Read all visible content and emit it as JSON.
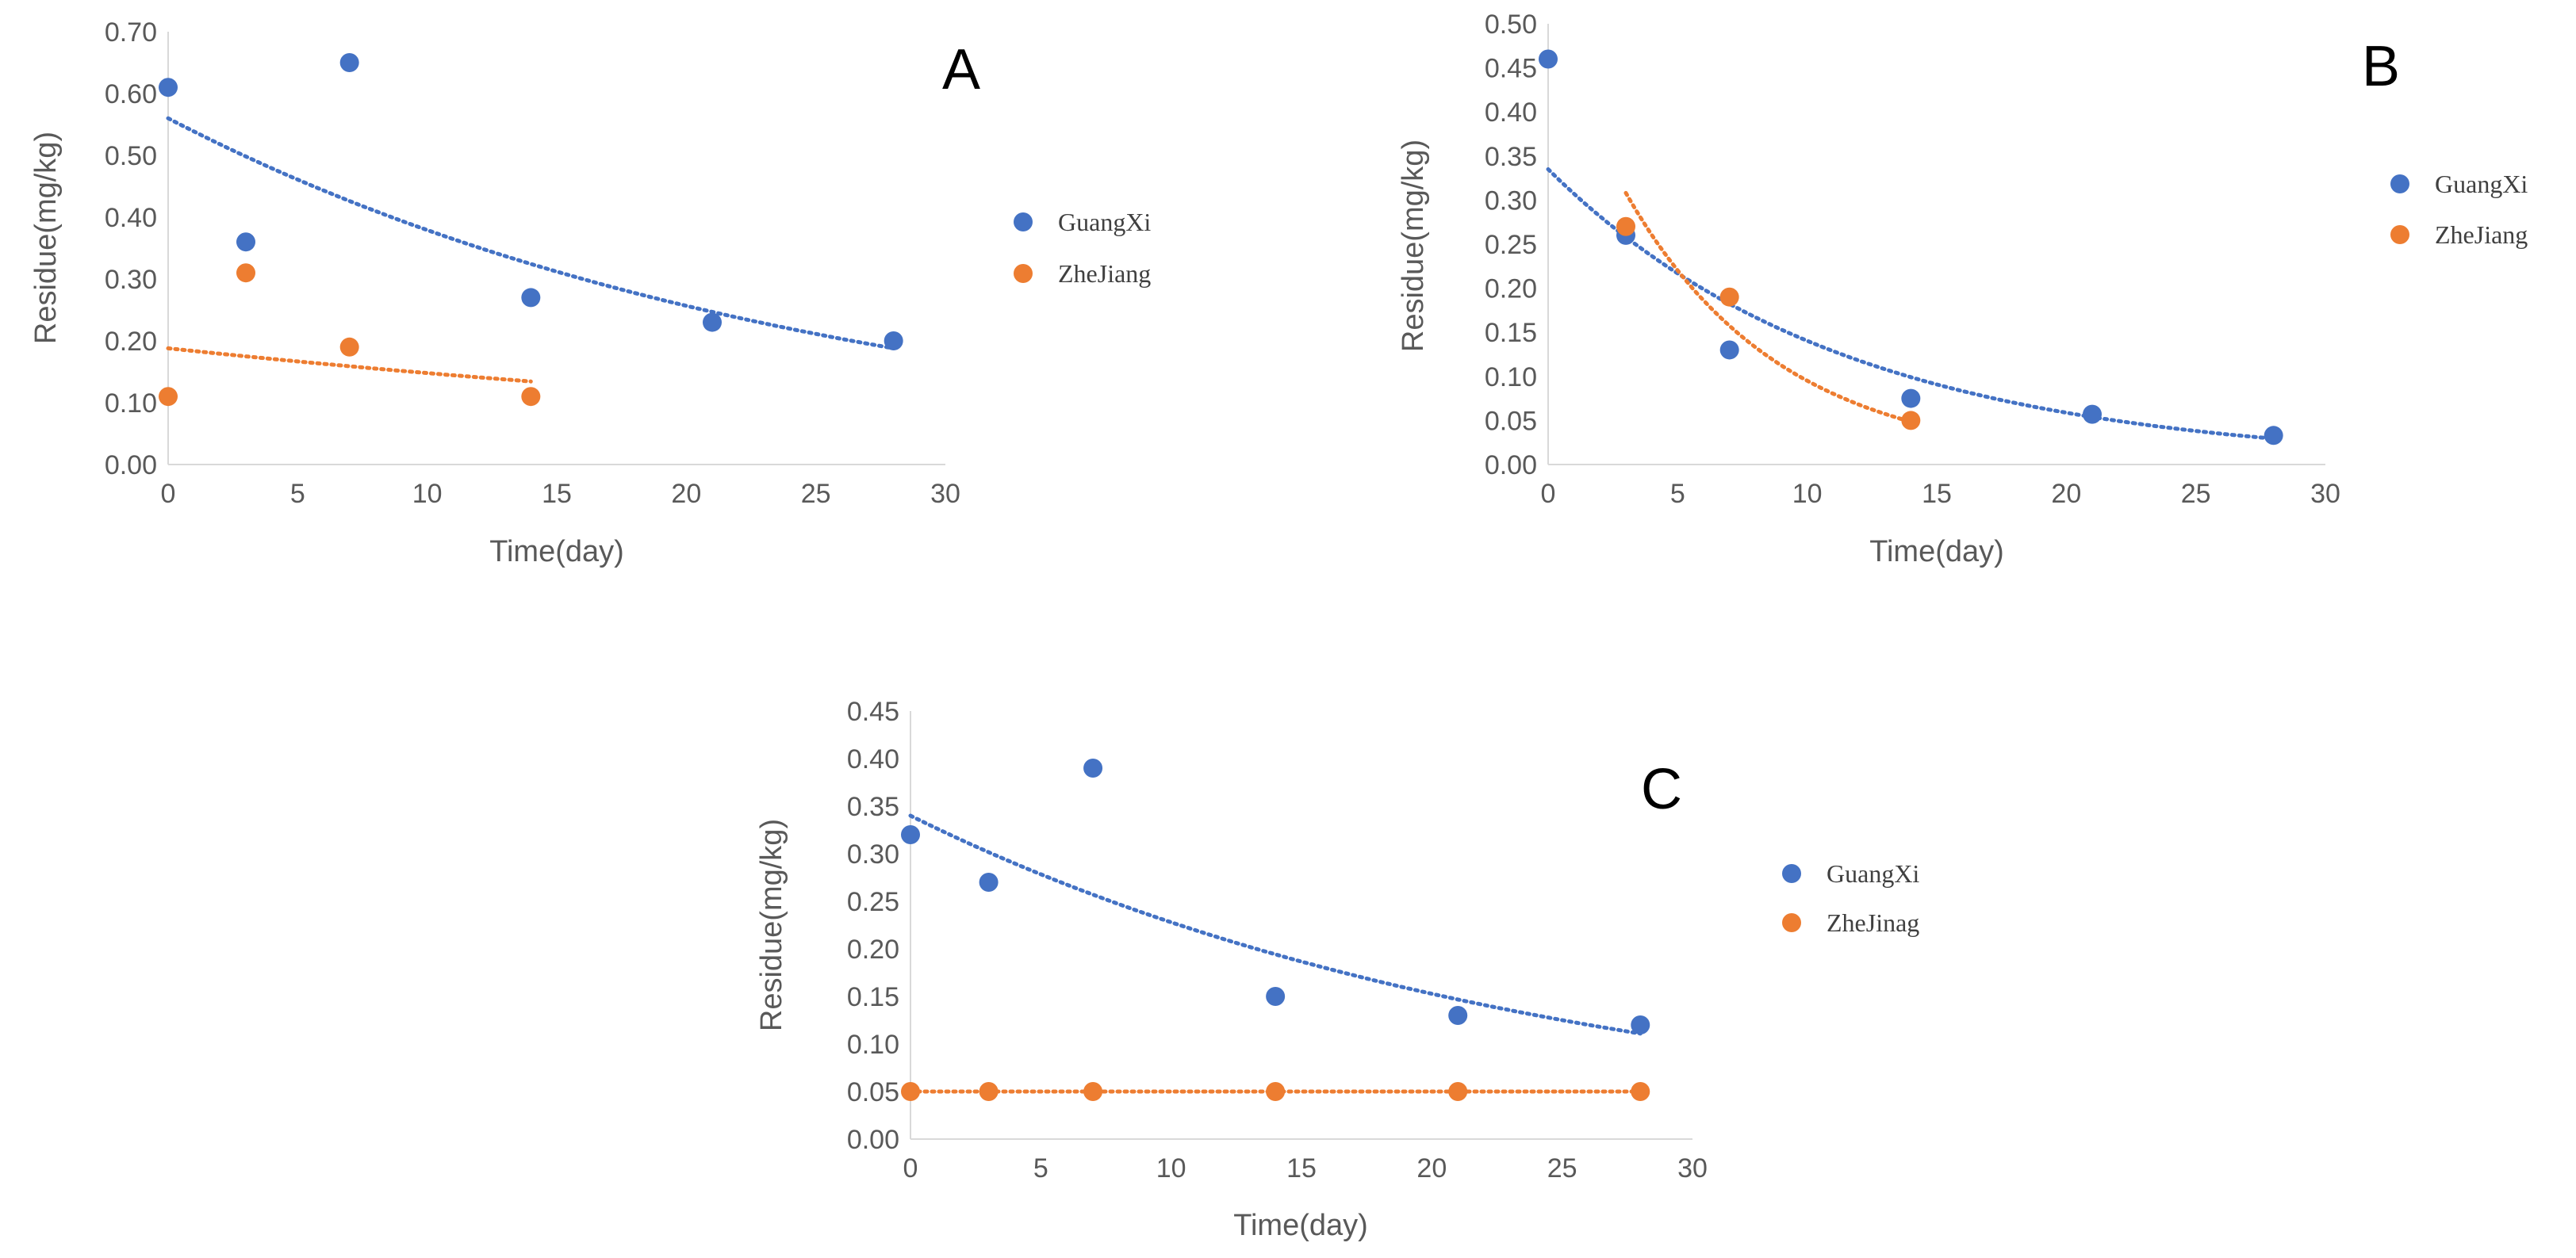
{
  "chart_data": [
    {
      "type": "scatter",
      "panel_label": "A",
      "xlabel": "Time(day)",
      "ylabel": "Residue(mg/kg)",
      "xlim": [
        0,
        30
      ],
      "ylim": [
        0,
        0.7
      ],
      "x_ticks": [
        "0",
        "5",
        "10",
        "15",
        "20",
        "25",
        "30"
      ],
      "y_ticks": [
        "0.00",
        "0.10",
        "0.20",
        "0.30",
        "0.40",
        "0.50",
        "0.60",
        "0.70"
      ],
      "legend_position": "right",
      "series": [
        {
          "name": "GuangXi",
          "color": "#4472c4",
          "x": [
            0,
            3,
            7,
            14,
            21,
            28
          ],
          "y": [
            0.61,
            0.36,
            0.65,
            0.27,
            0.23,
            0.2
          ],
          "trendline": {
            "type": "exponential",
            "a": 0.56,
            "k": 0.039,
            "x_range": [
              0,
              28
            ]
          }
        },
        {
          "name": "ZheJiang",
          "color": "#ed7d31",
          "x": [
            0,
            3,
            7,
            14
          ],
          "y": [
            0.11,
            0.31,
            0.19,
            0.11
          ],
          "trendline": {
            "type": "exponential",
            "a": 0.188,
            "k": 0.024,
            "x_range": [
              0,
              14
            ]
          }
        }
      ]
    },
    {
      "type": "scatter",
      "panel_label": "B",
      "xlabel": "Time(day)",
      "ylabel": "Residue(mg/kg)",
      "xlim": [
        0,
        30
      ],
      "ylim": [
        0,
        0.5
      ],
      "x_ticks": [
        "0",
        "5",
        "10",
        "15",
        "20",
        "25",
        "30"
      ],
      "y_ticks": [
        "0.00",
        "0.05",
        "0.10",
        "0.15",
        "0.20",
        "0.25",
        "0.30",
        "0.35",
        "0.40",
        "0.45",
        "0.50"
      ],
      "legend_position": "right",
      "series": [
        {
          "name": "GuangXi",
          "color": "#4472c4",
          "x": [
            0,
            3,
            7,
            14,
            21,
            28
          ],
          "y": [
            0.46,
            0.26,
            0.13,
            0.075,
            0.057,
            0.033
          ],
          "trendline": {
            "type": "exponential",
            "a": 0.335,
            "k": 0.087,
            "x_range": [
              0,
              28
            ]
          }
        },
        {
          "name": "ZheJiang",
          "color": "#ed7d31",
          "x": [
            3,
            7,
            14
          ],
          "y": [
            0.27,
            0.19,
            0.05
          ],
          "trendline": {
            "type": "exponential",
            "a": 0.51,
            "k": 0.168,
            "x_range": [
              3,
              14
            ]
          }
        }
      ]
    },
    {
      "type": "scatter",
      "panel_label": "C",
      "xlabel": "Time(day)",
      "ylabel": "Residue(mg/kg)",
      "xlim": [
        0,
        30
      ],
      "ylim": [
        0,
        0.45
      ],
      "x_ticks": [
        "0",
        "5",
        "10",
        "15",
        "20",
        "25",
        "30"
      ],
      "y_ticks": [
        "0.00",
        "0.05",
        "0.10",
        "0.15",
        "0.20",
        "0.25",
        "0.30",
        "0.35",
        "0.40",
        "0.45"
      ],
      "legend_position": "right",
      "series": [
        {
          "name": "GuangXi",
          "color": "#4472c4",
          "x": [
            0,
            3,
            7,
            14,
            21,
            28
          ],
          "y": [
            0.32,
            0.27,
            0.39,
            0.15,
            0.13,
            0.12
          ],
          "trendline": {
            "type": "exponential",
            "a": 0.34,
            "k": 0.04,
            "x_range": [
              0,
              28
            ]
          }
        },
        {
          "name": "ZheJinag",
          "color": "#ed7d31",
          "x": [
            0,
            3,
            7,
            14,
            21,
            28
          ],
          "y": [
            0.05,
            0.05,
            0.05,
            0.05,
            0.05,
            0.05
          ],
          "trendline": {
            "type": "exponential",
            "a": 0.05,
            "k": 0,
            "x_range": [
              0,
              28
            ]
          }
        }
      ]
    }
  ]
}
